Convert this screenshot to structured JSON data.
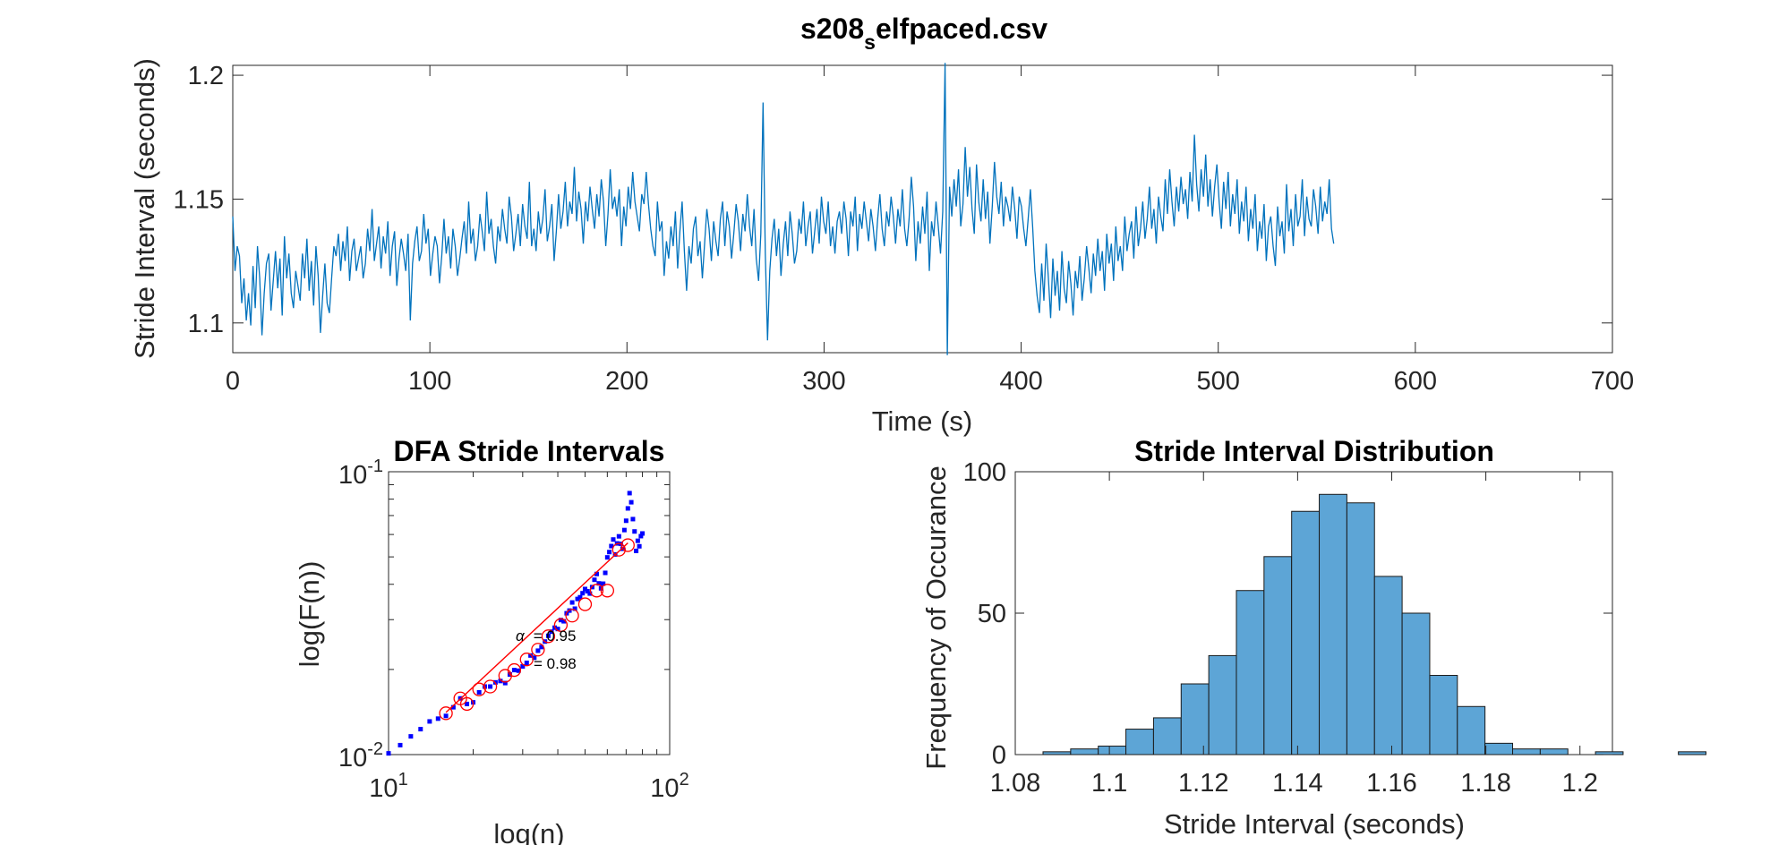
{
  "figure": {
    "title_main": "s208",
    "title_sub": "s",
    "title_rest": "elfpaced.csv"
  },
  "chart_data": [
    {
      "id": "timeseries",
      "type": "line",
      "title": "s208_selfpaced.csv",
      "xlabel": "Time (s)",
      "ylabel": "Stride Interval (seconds)",
      "xlim": [
        0,
        700
      ],
      "ylim": [
        1.088,
        1.204
      ],
      "xticks": [
        0,
        100,
        200,
        300,
        400,
        500,
        600,
        700
      ],
      "xtick_labels": [
        "0",
        "100",
        "200",
        "300",
        "400",
        "500",
        "600",
        "700"
      ],
      "yticks": [
        1.1,
        1.15,
        1.2
      ],
      "ytick_labels": [
        "1.1",
        "1.15",
        "1.2"
      ],
      "color": "#0072BD",
      "sample_interval_s": 1.14,
      "values": [
        1.143,
        1.121,
        1.131,
        1.127,
        1.108,
        1.118,
        1.101,
        1.112,
        1.099,
        1.123,
        1.106,
        1.131,
        1.118,
        1.095,
        1.112,
        1.124,
        1.128,
        1.105,
        1.117,
        1.129,
        1.114,
        1.126,
        1.103,
        1.135,
        1.118,
        1.128,
        1.112,
        1.106,
        1.121,
        1.115,
        1.109,
        1.128,
        1.118,
        1.134,
        1.113,
        1.125,
        1.107,
        1.131,
        1.119,
        1.096,
        1.111,
        1.124,
        1.108,
        1.104,
        1.118,
        1.131,
        1.127,
        1.136,
        1.121,
        1.133,
        1.125,
        1.139,
        1.117,
        1.129,
        1.134,
        1.121,
        1.126,
        1.131,
        1.118,
        1.124,
        1.138,
        1.129,
        1.146,
        1.125,
        1.132,
        1.139,
        1.122,
        1.135,
        1.128,
        1.141,
        1.119,
        1.131,
        1.137,
        1.115,
        1.126,
        1.134,
        1.128,
        1.121,
        1.136,
        1.101,
        1.124,
        1.133,
        1.139,
        1.125,
        1.129,
        1.144,
        1.132,
        1.138,
        1.119,
        1.128,
        1.135,
        1.131,
        1.116,
        1.127,
        1.142,
        1.128,
        1.135,
        1.122,
        1.138,
        1.131,
        1.119,
        1.126,
        1.134,
        1.141,
        1.128,
        1.149,
        1.132,
        1.138,
        1.125,
        1.131,
        1.144,
        1.137,
        1.129,
        1.153,
        1.136,
        1.142,
        1.131,
        1.124,
        1.139,
        1.133,
        1.146,
        1.138,
        1.132,
        1.151,
        1.143,
        1.129,
        1.136,
        1.144,
        1.131,
        1.148,
        1.139,
        1.134,
        1.157,
        1.131,
        1.138,
        1.129,
        1.145,
        1.136,
        1.142,
        1.154,
        1.133,
        1.139,
        1.148,
        1.125,
        1.137,
        1.152,
        1.138,
        1.145,
        1.157,
        1.139,
        1.149,
        1.144,
        1.163,
        1.141,
        1.153,
        1.146,
        1.132,
        1.149,
        1.141,
        1.155,
        1.146,
        1.138,
        1.152,
        1.143,
        1.158,
        1.149,
        1.131,
        1.144,
        1.162,
        1.146,
        1.151,
        1.143,
        1.154,
        1.131,
        1.147,
        1.139,
        1.155,
        1.146,
        1.161,
        1.149,
        1.143,
        1.137,
        1.152,
        1.148,
        1.161,
        1.148,
        1.138,
        1.131,
        1.127,
        1.149,
        1.137,
        1.141,
        1.119,
        1.133,
        1.126,
        1.139,
        1.131,
        1.145,
        1.122,
        1.137,
        1.149,
        1.129,
        1.113,
        1.131,
        1.124,
        1.138,
        1.143,
        1.127,
        1.133,
        1.118,
        1.132,
        1.146,
        1.138,
        1.125,
        1.141,
        1.133,
        1.127,
        1.142,
        1.149,
        1.131,
        1.145,
        1.139,
        1.126,
        1.136,
        1.148,
        1.141,
        1.129,
        1.144,
        1.137,
        1.152,
        1.139,
        1.131,
        1.146,
        1.126,
        1.117,
        1.136,
        1.189,
        1.128,
        1.093,
        1.121,
        1.134,
        1.142,
        1.127,
        1.138,
        1.119,
        1.132,
        1.141,
        1.127,
        1.145,
        1.136,
        1.124,
        1.129,
        1.142,
        1.136,
        1.149,
        1.131,
        1.139,
        1.145,
        1.128,
        1.137,
        1.146,
        1.132,
        1.151,
        1.141,
        1.136,
        1.149,
        1.131,
        1.139,
        1.128,
        1.141,
        1.145,
        1.136,
        1.149,
        1.142,
        1.127,
        1.145,
        1.139,
        1.151,
        1.129,
        1.144,
        1.138,
        1.149,
        1.141,
        1.133,
        1.146,
        1.139,
        1.129,
        1.142,
        1.152,
        1.138,
        1.131,
        1.145,
        1.139,
        1.151,
        1.143,
        1.132,
        1.146,
        1.139,
        1.154,
        1.138,
        1.131,
        1.142,
        1.159,
        1.147,
        1.125,
        1.141,
        1.132,
        1.147,
        1.136,
        1.153,
        1.121,
        1.141,
        1.135,
        1.149,
        1.139,
        1.128,
        1.145,
        1.205,
        1.087,
        1.155,
        1.143,
        1.158,
        1.147,
        1.162,
        1.139,
        1.148,
        1.171,
        1.151,
        1.163,
        1.146,
        1.136,
        1.164,
        1.149,
        1.141,
        1.158,
        1.142,
        1.153,
        1.132,
        1.147,
        1.165,
        1.151,
        1.144,
        1.157,
        1.139,
        1.151,
        1.147,
        1.141,
        1.155,
        1.146,
        1.134,
        1.151,
        1.147,
        1.138,
        1.131,
        1.142,
        1.154,
        1.139,
        1.121,
        1.111,
        1.104,
        1.124,
        1.109,
        1.132,
        1.118,
        1.102,
        1.126,
        1.111,
        1.121,
        1.105,
        1.129,
        1.114,
        1.108,
        1.125,
        1.116,
        1.103,
        1.121,
        1.114,
        1.127,
        1.109,
        1.118,
        1.131,
        1.122,
        1.112,
        1.128,
        1.119,
        1.134,
        1.121,
        1.129,
        1.113,
        1.136,
        1.124,
        1.132,
        1.117,
        1.139,
        1.125,
        1.131,
        1.121,
        1.143,
        1.129,
        1.136,
        1.141,
        1.126,
        1.147,
        1.131,
        1.138,
        1.149,
        1.134,
        1.142,
        1.155,
        1.138,
        1.146,
        1.132,
        1.151,
        1.143,
        1.137,
        1.158,
        1.144,
        1.162,
        1.149,
        1.139,
        1.155,
        1.145,
        1.159,
        1.148,
        1.154,
        1.142,
        1.161,
        1.149,
        1.176,
        1.156,
        1.145,
        1.162,
        1.151,
        1.168,
        1.147,
        1.158,
        1.143,
        1.155,
        1.164,
        1.149,
        1.138,
        1.157,
        1.146,
        1.161,
        1.139,
        1.152,
        1.144,
        1.158,
        1.136,
        1.149,
        1.141,
        1.155,
        1.133,
        1.146,
        1.138,
        1.152,
        1.129,
        1.141,
        1.134,
        1.148,
        1.125,
        1.139,
        1.143,
        1.131,
        1.123,
        1.147,
        1.135,
        1.141,
        1.128,
        1.156,
        1.137,
        1.146,
        1.131,
        1.152,
        1.139,
        1.143,
        1.158,
        1.135,
        1.151,
        1.142,
        1.139,
        1.154,
        1.147,
        1.136,
        1.155,
        1.141,
        1.149,
        1.144,
        1.158,
        1.138,
        1.132
      ]
    },
    {
      "id": "dfa",
      "type": "scatter",
      "title": "DFA Stride Intervals",
      "xlabel": "log(n)",
      "ylabel": "log(F(n))",
      "xscale": "log",
      "yscale": "log",
      "xlim": [
        10,
        100
      ],
      "ylim": [
        0.01,
        0.1
      ],
      "xtick_labels": [
        {
          "base": "10",
          "exp": "1"
        },
        {
          "base": "10",
          "exp": "2"
        }
      ],
      "ytick_labels": [
        {
          "base": "10",
          "exp": "-2"
        },
        {
          "base": "10",
          "exp": "-1"
        }
      ],
      "annotation_alpha_symbol": "α",
      "annotation_alpha_value": "= 0.95",
      "annotation_r2_value": "= 0.98",
      "series": [
        {
          "marker": "square",
          "color": "#0000FF",
          "points": [
            [
              10,
              0.0101
            ],
            [
              11,
              0.0108
            ],
            [
              12,
              0.0116
            ],
            [
              13,
              0.0123
            ],
            [
              14,
              0.0131
            ],
            [
              15,
              0.0134
            ],
            [
              16,
              0.0137
            ],
            [
              17,
              0.0147
            ],
            [
              18,
              0.0158
            ],
            [
              19,
              0.0151
            ],
            [
              20,
              0.0153
            ],
            [
              21,
              0.0166
            ],
            [
              22,
              0.0174
            ],
            [
              23,
              0.0174
            ],
            [
              24,
              0.018
            ],
            [
              25,
              0.0182
            ],
            [
              26,
              0.0179
            ],
            [
              27,
              0.0192
            ],
            [
              28,
              0.0199
            ],
            [
              29,
              0.0198
            ],
            [
              30,
              0.0205
            ],
            [
              31,
              0.0211
            ],
            [
              32,
              0.0224
            ],
            [
              33,
              0.022
            ],
            [
              34,
              0.0233
            ],
            [
              35,
              0.024
            ],
            [
              36,
              0.0251
            ],
            [
              37,
              0.0263
            ],
            [
              38,
              0.0272
            ],
            [
              39,
              0.0281
            ],
            [
              40,
              0.0278
            ],
            [
              41,
              0.0299
            ],
            [
              42,
              0.0296
            ],
            [
              43,
              0.0316
            ],
            [
              44,
              0.0323
            ],
            [
              45,
              0.0345
            ],
            [
              46,
              0.0328
            ],
            [
              47,
              0.0355
            ],
            [
              48,
              0.036
            ],
            [
              49,
              0.0372
            ],
            [
              50,
              0.0385
            ],
            [
              51,
              0.0378
            ],
            [
              52,
              0.0371
            ],
            [
              53,
              0.0391
            ],
            [
              54,
              0.0415
            ],
            [
              55,
              0.0435
            ],
            [
              56,
              0.0403
            ],
            [
              57,
              0.0387
            ],
            [
              58,
              0.0402
            ],
            [
              59,
              0.0439
            ],
            [
              60,
              0.0498
            ],
            [
              61,
              0.052
            ],
            [
              62,
              0.0546
            ],
            [
              63,
              0.0576
            ],
            [
              64,
              0.051
            ],
            [
              65,
              0.0558
            ],
            [
              66,
              0.0591
            ],
            [
              67,
              0.0556
            ],
            [
              68,
              0.0534
            ],
            [
              69,
              0.0622
            ],
            [
              70,
              0.0671
            ],
            [
              71,
              0.0742
            ],
            [
              72,
              0.084
            ],
            [
              73,
              0.078
            ],
            [
              74,
              0.068
            ],
            [
              75,
              0.0615
            ],
            [
              76,
              0.0525
            ],
            [
              77,
              0.057
            ],
            [
              78,
              0.0545
            ],
            [
              79,
              0.0592
            ],
            [
              80,
              0.0605
            ]
          ]
        },
        {
          "marker": "circle",
          "color": "#FF0000",
          "points": [
            [
              16,
              0.014
            ],
            [
              18,
              0.0158
            ],
            [
              19,
              0.0151
            ],
            [
              21,
              0.017
            ],
            [
              23,
              0.0174
            ],
            [
              26,
              0.019
            ],
            [
              28,
              0.0199
            ],
            [
              31,
              0.0217
            ],
            [
              34,
              0.0235
            ],
            [
              37,
              0.0262
            ],
            [
              41,
              0.0287
            ],
            [
              45,
              0.031
            ],
            [
              50,
              0.034
            ],
            [
              55,
              0.038
            ],
            [
              60,
              0.038
            ],
            [
              66,
              0.053
            ],
            [
              71,
              0.055
            ]
          ]
        },
        {
          "marker": "line",
          "color": "#FF0000",
          "points": [
            [
              16,
              0.0141
            ],
            [
              71,
              0.056
            ]
          ]
        }
      ]
    },
    {
      "id": "histogram",
      "type": "bar",
      "title": "Stride Interval Distribution",
      "xlabel": "Stride Interval (seconds)",
      "ylabel": "Frequency of Occurance",
      "xlim": [
        1.08,
        1.2069
      ],
      "ylim": [
        0,
        100
      ],
      "xticks": [
        1.08,
        1.1,
        1.12,
        1.14,
        1.16,
        1.18,
        1.2
      ],
      "xtick_labels": [
        "1.08",
        "1.1",
        "1.12",
        "1.14",
        "1.16",
        "1.18",
        "1.2"
      ],
      "yticks": [
        0,
        50,
        100
      ],
      "ytick_labels": [
        "0",
        "50",
        "100"
      ],
      "color": "#4DBEEE",
      "bin_start": 1.0859,
      "bin_width": 0.00587,
      "values": [
        1,
        2,
        3,
        9,
        13,
        25,
        35,
        58,
        70,
        86,
        92,
        89,
        63,
        50,
        28,
        17,
        4,
        2,
        2,
        0,
        1,
        0,
        0,
        1
      ]
    }
  ]
}
